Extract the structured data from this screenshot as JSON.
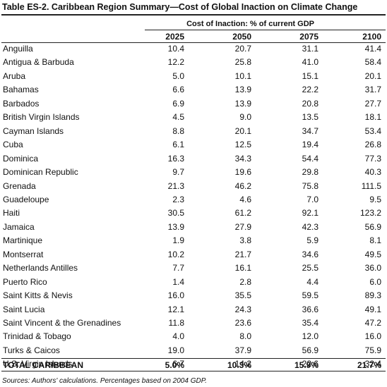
{
  "table": {
    "title": "Table ES-2.  Caribbean Region Summary—Cost of Global Inaction on Climate Change",
    "group_header": "Cost of Inaction: % of current GDP",
    "columns": [
      "2025",
      "2050",
      "2075",
      "2100"
    ],
    "rows": [
      [
        "Anguilla",
        "10.4",
        "20.7",
        "31.1",
        "41.4"
      ],
      [
        "Antigua & Barbuda",
        "12.2",
        "25.8",
        "41.0",
        "58.4"
      ],
      [
        "Aruba",
        "5.0",
        "10.1",
        "15.1",
        "20.1"
      ],
      [
        "Bahamas",
        "6.6",
        "13.9",
        "22.2",
        "31.7"
      ],
      [
        "Barbados",
        "6.9",
        "13.9",
        "20.8",
        "27.7"
      ],
      [
        "British Virgin Islands",
        "4.5",
        "9.0",
        "13.5",
        "18.1"
      ],
      [
        "Cayman Islands",
        "8.8",
        "20.1",
        "34.7",
        "53.4"
      ],
      [
        "Cuba",
        "6.1",
        "12.5",
        "19.4",
        "26.8"
      ],
      [
        "Dominica",
        "16.3",
        "34.3",
        "54.4",
        "77.3"
      ],
      [
        "Dominican Republic",
        "9.7",
        "19.6",
        "29.8",
        "40.3"
      ],
      [
        "Grenada",
        "21.3",
        "46.2",
        "75.8",
        "111.5"
      ],
      [
        "Guadeloupe",
        "2.3",
        "4.6",
        "7.0",
        "9.5"
      ],
      [
        "Haiti",
        "30.5",
        "61.2",
        "92.1",
        "123.2"
      ],
      [
        "Jamaica",
        "13.9",
        "27.9",
        "42.3",
        "56.9"
      ],
      [
        "Martinique",
        "1.9",
        "3.8",
        "5.9",
        "8.1"
      ],
      [
        "Montserrat",
        "10.2",
        "21.7",
        "34.6",
        "49.5"
      ],
      [
        "Netherlands Antilles",
        "7.7",
        "16.1",
        "25.5",
        "36.0"
      ],
      [
        "Puerto Rico",
        "1.4",
        "2.8",
        "4.4",
        "6.0"
      ],
      [
        "Saint Kitts & Nevis",
        "16.0",
        "35.5",
        "59.5",
        "89.3"
      ],
      [
        "Saint Lucia",
        "12.1",
        "24.3",
        "36.6",
        "49.1"
      ],
      [
        "Saint Vincent & the Grenadines",
        "11.8",
        "23.6",
        "35.4",
        "47.2"
      ],
      [
        "Trinidad & Tobago",
        "4.0",
        "8.0",
        "12.0",
        "16.0"
      ],
      [
        "Turks & Caicos",
        "19.0",
        "37.9",
        "56.9",
        "75.9"
      ],
      [
        "U.S. Virgin Islands",
        "6.7",
        "14.2",
        "22.6",
        "32.4"
      ]
    ],
    "total": [
      "TOTAL CARIBBEAN",
      "5.0%",
      "10.3%",
      "15.9%",
      "21.7%"
    ],
    "source": "Sources: Authors' calculations. Percentages based on 2004 GDP."
  }
}
